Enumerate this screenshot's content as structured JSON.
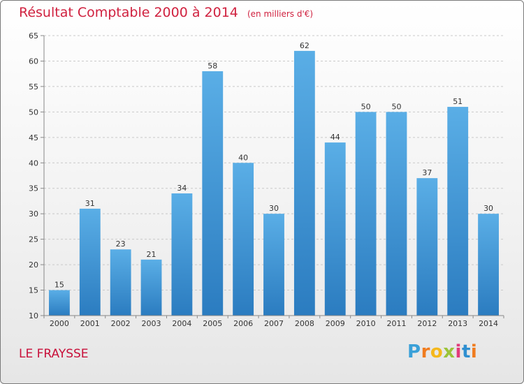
{
  "header": {
    "title": "Résultat Comptable 2000 à 2014",
    "subtitle": "(en milliers d'€)"
  },
  "footer": {
    "town": "LE FRAYSSE",
    "logo_letters": [
      "P",
      "r",
      "o",
      "x",
      "i",
      "t",
      "i"
    ],
    "logo_colors": [
      "#3aa0d8",
      "#f07c1f",
      "#f5b81c",
      "#9bc43a",
      "#e23b7a",
      "#2f8fd0",
      "#f07c1f"
    ]
  },
  "chart_data": {
    "type": "bar",
    "title": "Résultat Comptable 2000 à 2014",
    "xlabel": "",
    "ylabel": "",
    "categories": [
      "2000",
      "2001",
      "2002",
      "2003",
      "2004",
      "2005",
      "2006",
      "2007",
      "2008",
      "2009",
      "2010",
      "2011",
      "2012",
      "2013",
      "2014"
    ],
    "values": [
      15,
      31,
      23,
      21,
      34,
      58,
      40,
      30,
      62,
      44,
      50,
      50,
      37,
      51,
      30
    ],
    "ylim": [
      10,
      65
    ],
    "yticks": [
      10,
      15,
      20,
      25,
      30,
      35,
      40,
      45,
      50,
      55,
      60,
      65
    ],
    "grid": true,
    "bar_color_top": "#5aaee6",
    "bar_color_bottom": "#2b7cc0"
  }
}
